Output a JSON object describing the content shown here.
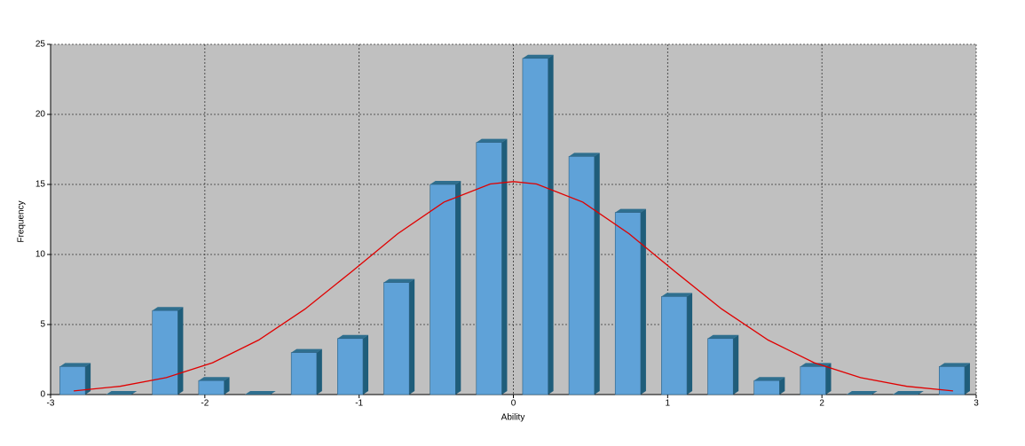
{
  "chart_data": {
    "type": "histogram",
    "x_label": "Ability",
    "y_label": "Frequency",
    "bins": [
      -3,
      -2.7,
      -2.4,
      -2.1,
      -1.8,
      -1.5,
      -1.2,
      -0.9,
      -0.6,
      -0.3,
      0,
      0.3,
      0.6,
      0.9,
      1.2,
      1.5,
      1.8,
      2.1,
      2.4,
      2.7,
      3
    ],
    "values": [
      2,
      0,
      6,
      1,
      0,
      3,
      4,
      8,
      15,
      18,
      24,
      17,
      13,
      7,
      4,
      1,
      2,
      0,
      0,
      2
    ],
    "color": "#5fa2d8",
    "curve": {
      "color": "#e00000",
      "x": [
        -2.85,
        -2.55,
        -2.25,
        -1.95,
        -1.65,
        -1.35,
        -1.05,
        -0.75,
        -0.45,
        -0.15,
        0,
        0.15,
        0.45,
        0.75,
        1.05,
        1.35,
        1.65,
        1.95,
        2.25,
        2.55,
        2.85
      ],
      "values": [
        0.26,
        0.59,
        1.21,
        2.27,
        3.9,
        6.11,
        8.76,
        11.48,
        13.74,
        15.03,
        15.2,
        15.03,
        13.74,
        11.48,
        8.76,
        6.11,
        3.9,
        2.27,
        1.21,
        0.59,
        0.26
      ]
    },
    "xlim": [
      -3,
      3
    ],
    "xticks": [
      -3,
      -2,
      -1,
      0,
      1,
      2,
      3
    ],
    "ylim": [
      0,
      25
    ],
    "yticks": [
      0,
      5,
      10,
      15,
      20,
      25
    ],
    "grid": true
  }
}
